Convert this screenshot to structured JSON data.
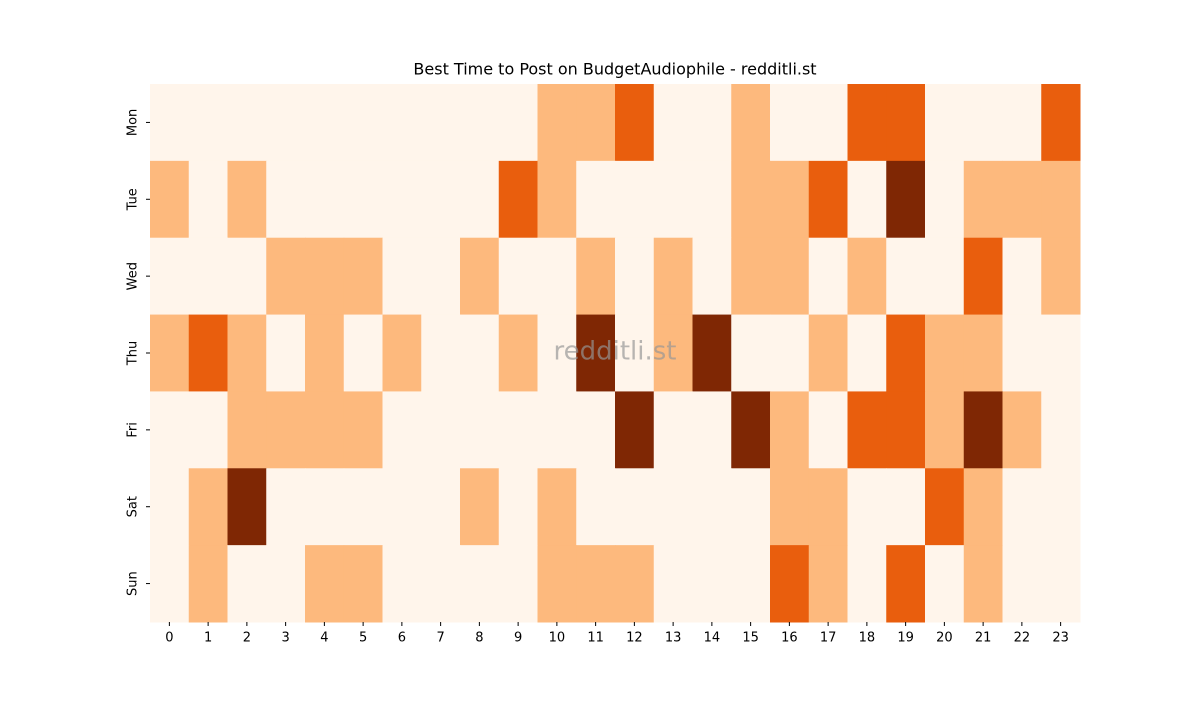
{
  "chart_data": {
    "type": "heatmap",
    "title": "Best Time to Post on BudgetAudiophile - redditli.st",
    "watermark": "redditli.st",
    "x": [
      0,
      1,
      2,
      3,
      4,
      5,
      6,
      7,
      8,
      9,
      10,
      11,
      12,
      13,
      14,
      15,
      16,
      17,
      18,
      19,
      20,
      21,
      22,
      23
    ],
    "y": [
      "Mon",
      "Tue",
      "Wed",
      "Thu",
      "Fri",
      "Sat",
      "Sun"
    ],
    "colors": [
      "#fff5eb",
      "#fdb97d",
      "#e95e0d",
      "#7f2704"
    ],
    "values": [
      [
        0,
        0,
        0,
        0,
        0,
        0,
        0,
        0,
        0,
        0,
        1,
        1,
        2,
        0,
        0,
        1,
        0,
        0,
        2,
        2,
        0,
        0,
        0,
        2
      ],
      [
        1,
        0,
        1,
        0,
        0,
        0,
        0,
        0,
        0,
        2,
        1,
        0,
        0,
        0,
        0,
        1,
        1,
        2,
        0,
        3,
        0,
        1,
        1,
        1
      ],
      [
        0,
        0,
        0,
        1,
        1,
        1,
        0,
        0,
        1,
        0,
        0,
        1,
        0,
        1,
        0,
        1,
        1,
        0,
        1,
        0,
        0,
        2,
        0,
        1
      ],
      [
        1,
        2,
        1,
        0,
        1,
        0,
        1,
        0,
        0,
        1,
        0,
        3,
        0,
        1,
        3,
        0,
        0,
        1,
        0,
        2,
        1,
        1,
        0,
        0
      ],
      [
        0,
        0,
        1,
        1,
        1,
        1,
        0,
        0,
        0,
        0,
        0,
        0,
        3,
        0,
        0,
        3,
        1,
        0,
        2,
        2,
        1,
        3,
        1,
        0
      ],
      [
        0,
        1,
        3,
        0,
        0,
        0,
        0,
        0,
        1,
        0,
        1,
        0,
        0,
        0,
        0,
        0,
        1,
        1,
        0,
        0,
        2,
        1,
        0,
        0
      ],
      [
        0,
        1,
        0,
        0,
        1,
        1,
        0,
        0,
        0,
        0,
        1,
        1,
        1,
        0,
        0,
        0,
        2,
        1,
        0,
        2,
        0,
        1,
        0,
        0
      ]
    ]
  }
}
